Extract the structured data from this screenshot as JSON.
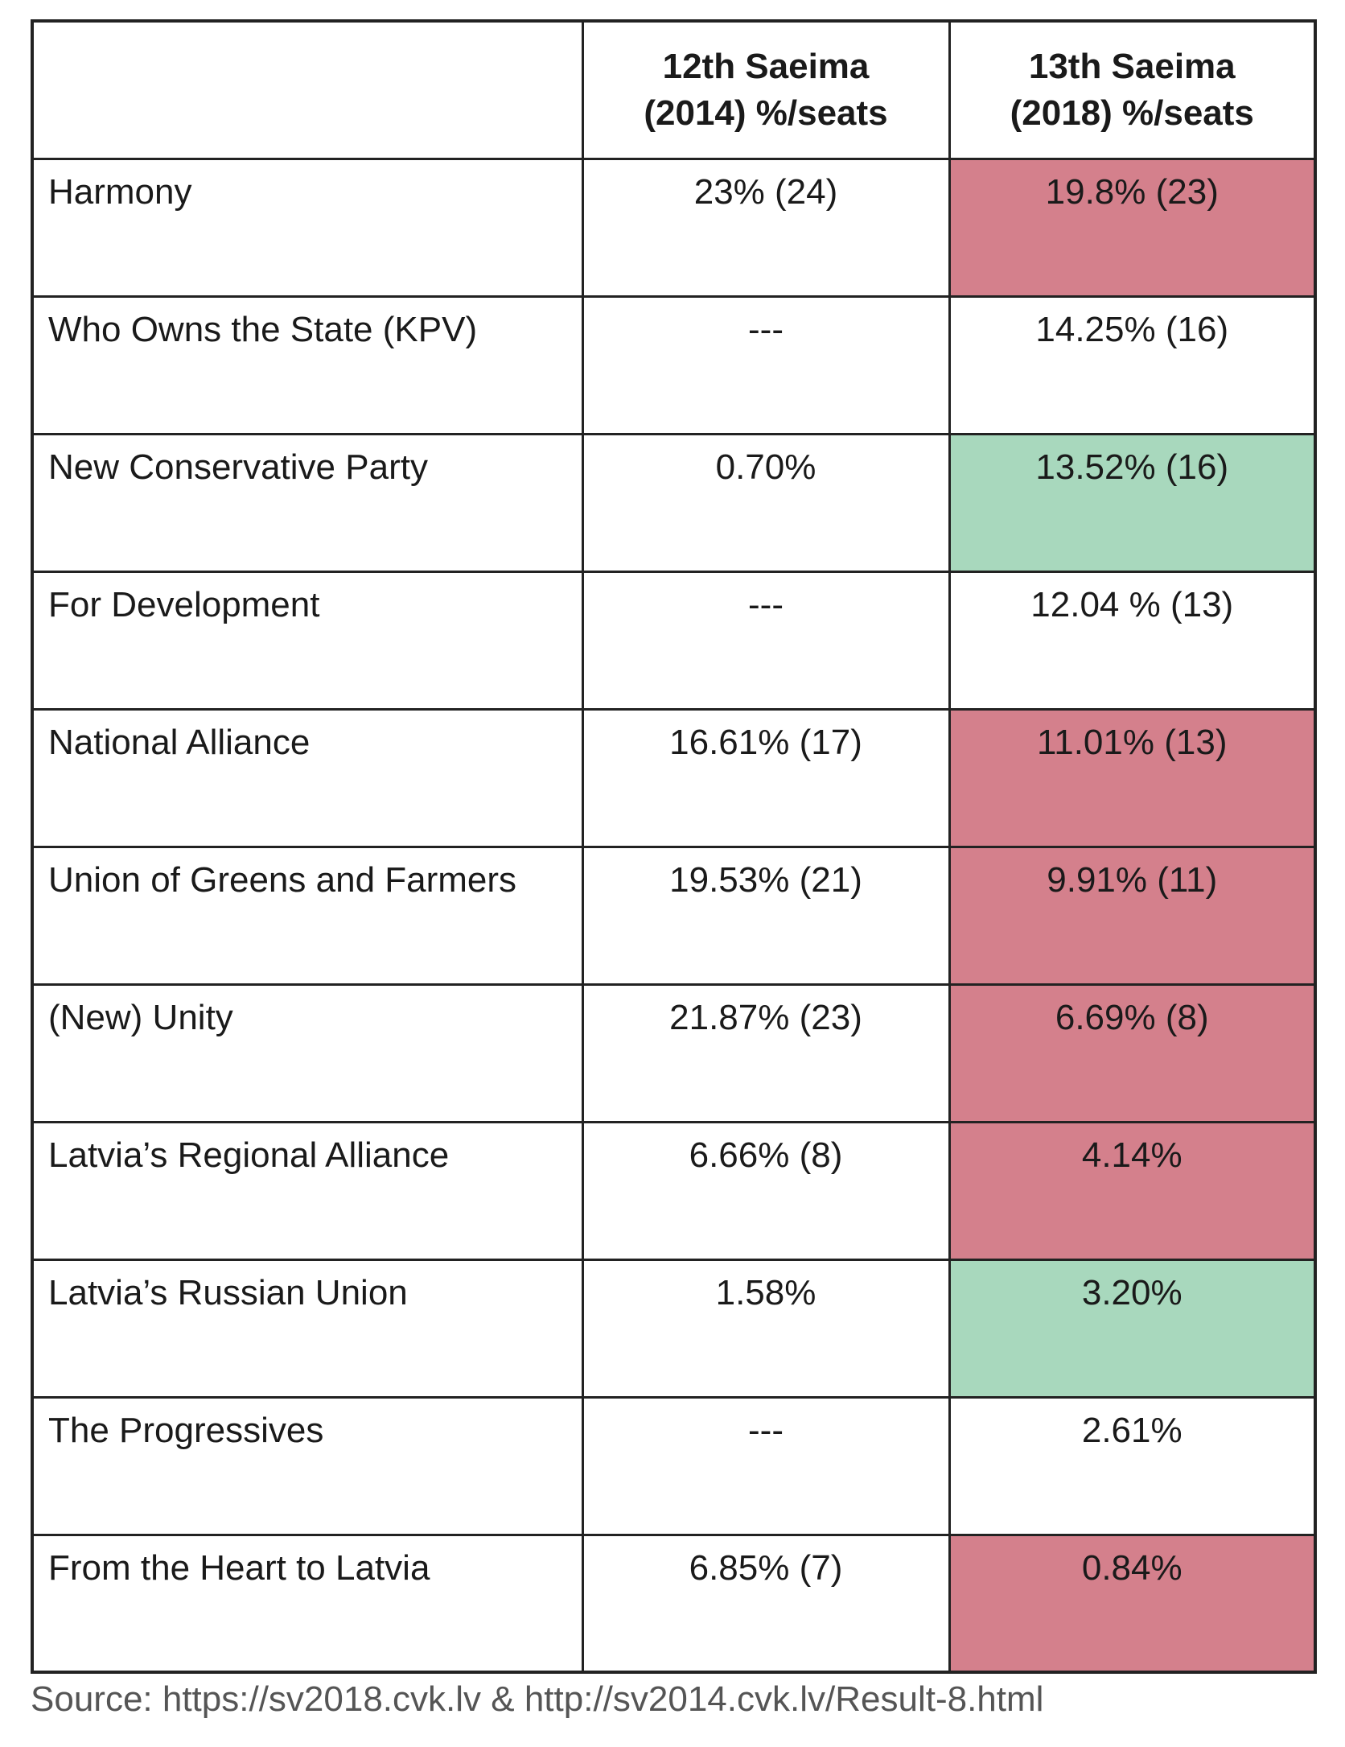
{
  "colors": {
    "decrease": "#d4808c",
    "increase": "#a8d8bd",
    "neutral": "#ffffff",
    "border": "#222222"
  },
  "chart_data": {
    "type": "table",
    "columns": [
      {
        "header": "",
        "lines": []
      },
      {
        "header": "12th Saeima (2014) %/seats",
        "lines": [
          "12th Saeima",
          "(2014) %/seats"
        ]
      },
      {
        "header": "13th Saeima (2018) %/seats",
        "lines": [
          "13th Saeima",
          "(2018) %/seats"
        ]
      }
    ],
    "rows": [
      {
        "party": "Harmony",
        "y2014": "23% (24)",
        "y2018": "19.8% (23)",
        "change": "decrease"
      },
      {
        "party": "Who Owns the State (KPV)",
        "y2014": "---",
        "y2018": "14.25% (16)",
        "change": "neutral"
      },
      {
        "party": "New Conservative Party",
        "y2014": "0.70%",
        "y2018": "13.52% (16)",
        "change": "increase"
      },
      {
        "party": "For Development",
        "y2014": "---",
        "y2018": "12.04 % (13)",
        "change": "neutral"
      },
      {
        "party": "National Alliance",
        "y2014": "16.61% (17)",
        "y2018": "11.01% (13)",
        "change": "decrease"
      },
      {
        "party": "Union of Greens and Farmers",
        "y2014": "19.53% (21)",
        "y2018": "9.91% (11)",
        "change": "decrease"
      },
      {
        "party": "(New) Unity",
        "y2014": "21.87% (23)",
        "y2018": "6.69% (8)",
        "change": "decrease"
      },
      {
        "party": "Latvia’s Regional Alliance",
        "y2014": "6.66% (8)",
        "y2018": "4.14%",
        "change": "decrease"
      },
      {
        "party": "Latvia’s Russian Union",
        "y2014": "1.58%",
        "y2018": "3.20%",
        "change": "increase"
      },
      {
        "party": "The Progressives",
        "y2014": "---",
        "y2018": "2.61%",
        "change": "neutral"
      },
      {
        "party": "From the Heart to Latvia",
        "y2014": "6.85% (7)",
        "y2018": "0.84%",
        "change": "decrease"
      }
    ]
  },
  "source": "Source: https://sv2018.cvk.lv & http://sv2014.cvk.lv/Result-8.html"
}
